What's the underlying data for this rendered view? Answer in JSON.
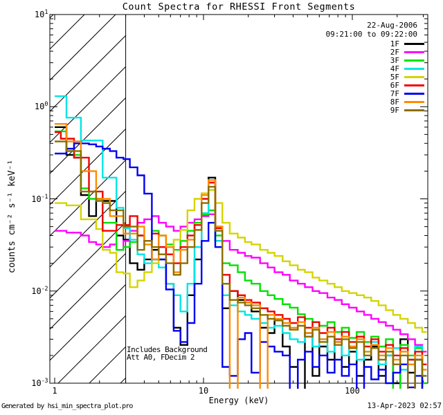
{
  "title": "Count Spectra for RHESSI Front Segments",
  "header": {
    "date": "22-Aug-2006",
    "interval": "09:21:00 to 09:22:00"
  },
  "notes": {
    "background": "Includes Background",
    "attenuation": "Att A0, FDecim 2"
  },
  "footer": {
    "generated_by": "Generated by hsi_min_spectra_plot.pro",
    "timestamp": "13-Apr-2023 02:57"
  },
  "chart_data": {
    "type": "line",
    "subtype": "step-histogram-spectra",
    "title": "Count Spectra for RHESSI Front Segments",
    "xlabel": "Energy (keV)",
    "ylabel": "counts cm⁻² s⁻¹ keV⁻¹",
    "xscale": "log",
    "yscale": "log",
    "xlim": [
      0.93,
      320
    ],
    "ylim": [
      0.001,
      10
    ],
    "grid": false,
    "legend_position": "top-right",
    "hatched_region_keV": [
      1,
      3
    ],
    "x_ticks": [
      {
        "value": 1,
        "label": "1"
      },
      {
        "value": 10,
        "label": "10"
      },
      {
        "value": 100,
        "label": "100"
      }
    ],
    "y_ticks": [
      {
        "value": 10,
        "label": "10¹",
        "exp": "1"
      },
      {
        "value": 1,
        "label": "10⁰",
        "exp": "0"
      },
      {
        "value": 0.1,
        "label": "10⁻¹",
        "exp": "-1"
      },
      {
        "value": 0.01,
        "label": "10⁻²",
        "exp": "-2"
      },
      {
        "value": 0.001,
        "label": "10⁻³",
        "exp": "-3"
      }
    ],
    "energy_bin_edges_keV": [
      1.0,
      1.1,
      1.2,
      1.35,
      1.5,
      1.7,
      1.9,
      2.1,
      2.35,
      2.6,
      2.9,
      3.2,
      3.6,
      4.0,
      4.5,
      5.0,
      5.6,
      6.3,
      7.0,
      7.8,
      8.7,
      9.7,
      10.8,
      12.0,
      13.4,
      15,
      17,
      19,
      21,
      24,
      27,
      30,
      34,
      38,
      43,
      48,
      54,
      60,
      68,
      76,
      85,
      95,
      107,
      120,
      134,
      150,
      168,
      188,
      210,
      236,
      264,
      295
    ],
    "series": [
      {
        "name": "1F",
        "color": "#000000",
        "values": [
          0.6,
          0.6,
          0.3,
          0.28,
          0.11,
          0.065,
          0.1,
          0.095,
          0.095,
          0.04,
          0.036,
          0.02,
          0.017,
          0.022,
          0.028,
          0.022,
          0.012,
          0.004,
          0.0026,
          0.009,
          0.022,
          0.065,
          0.17,
          0.035,
          0.0065,
          0.01,
          0.008,
          0.0075,
          0.006,
          0.004,
          0.0035,
          0.0048,
          0.0025,
          0.0015,
          0.0008,
          0.0035,
          0.0012,
          0.0025,
          0.0018,
          0.0028,
          0.0015,
          0.0022,
          0.0012,
          0.0018,
          0.0025,
          0.0012,
          0.002,
          0.001,
          0.003,
          0.0013,
          0.0018,
          0.0008
        ]
      },
      {
        "name": "2F",
        "color": "#ff00ff",
        "values": [
          0.045,
          0.045,
          0.043,
          0.043,
          0.04,
          0.034,
          0.032,
          0.03,
          0.032,
          0.028,
          0.035,
          0.045,
          0.055,
          0.06,
          0.065,
          0.055,
          0.05,
          0.045,
          0.05,
          0.055,
          0.06,
          0.065,
          0.068,
          0.05,
          0.035,
          0.028,
          0.026,
          0.024,
          0.023,
          0.02,
          0.018,
          0.016,
          0.015,
          0.013,
          0.012,
          0.011,
          0.01,
          0.0095,
          0.0085,
          0.008,
          0.0072,
          0.0066,
          0.006,
          0.0055,
          0.005,
          0.0046,
          0.0042,
          0.0038,
          0.0034,
          0.003,
          0.0026,
          0.0022
        ]
      },
      {
        "name": "3F",
        "color": "#00e100",
        "values": [
          0.54,
          0.54,
          0.33,
          0.3,
          0.13,
          0.1,
          0.1,
          0.055,
          0.055,
          0.028,
          0.03,
          0.034,
          0.04,
          0.035,
          0.045,
          0.04,
          0.032,
          0.028,
          0.035,
          0.045,
          0.055,
          0.068,
          0.075,
          0.04,
          0.02,
          0.019,
          0.016,
          0.013,
          0.012,
          0.01,
          0.009,
          0.0082,
          0.0072,
          0.0066,
          0.0056,
          0.005,
          0.0046,
          0.0042,
          0.0046,
          0.0036,
          0.004,
          0.0031,
          0.0036,
          0.0028,
          0.0032,
          0.0025,
          0.003,
          0.0007,
          0.0026,
          0.002,
          0.0024,
          0.001
        ]
      },
      {
        "name": "4F",
        "color": "#00e5e5",
        "values": [
          1.3,
          1.3,
          0.76,
          0.76,
          0.43,
          0.43,
          0.43,
          0.17,
          0.17,
          0.08,
          0.048,
          0.036,
          0.025,
          0.02,
          0.022,
          0.018,
          0.012,
          0.009,
          0.006,
          0.012,
          0.03,
          0.07,
          0.125,
          0.035,
          0.009,
          0.007,
          0.006,
          0.0055,
          0.005,
          0.0045,
          0.004,
          0.0042,
          0.0035,
          0.003,
          0.0028,
          0.0032,
          0.0025,
          0.003,
          0.0022,
          0.0028,
          0.002,
          0.0025,
          0.0018,
          0.0022,
          0.0028,
          0.0016,
          0.002,
          0.0024,
          0.0014,
          0.0018,
          0.0025,
          0.0012
        ]
      },
      {
        "name": "5F",
        "color": "#d4d400",
        "values": [
          0.09,
          0.09,
          0.085,
          0.085,
          0.06,
          0.06,
          0.047,
          0.028,
          0.026,
          0.016,
          0.0155,
          0.011,
          0.013,
          0.016,
          0.02,
          0.025,
          0.03,
          0.036,
          0.046,
          0.075,
          0.1,
          0.115,
          0.125,
          0.09,
          0.055,
          0.042,
          0.038,
          0.034,
          0.032,
          0.028,
          0.026,
          0.024,
          0.021,
          0.019,
          0.017,
          0.016,
          0.014,
          0.013,
          0.012,
          0.011,
          0.01,
          0.0095,
          0.009,
          0.0085,
          0.0078,
          0.007,
          0.0062,
          0.0055,
          0.005,
          0.0045,
          0.004,
          0.0036
        ]
      },
      {
        "name": "6F",
        "color": "#f10000",
        "values": [
          0.53,
          0.45,
          0.45,
          0.28,
          0.28,
          0.12,
          0.12,
          0.045,
          0.045,
          0.052,
          0.052,
          0.065,
          0.04,
          0.035,
          0.042,
          0.03,
          0.025,
          0.02,
          0.03,
          0.04,
          0.052,
          0.1,
          0.15,
          0.048,
          0.015,
          0.01,
          0.009,
          0.008,
          0.0075,
          0.0065,
          0.006,
          0.0055,
          0.005,
          0.0045,
          0.0052,
          0.004,
          0.0046,
          0.0035,
          0.004,
          0.003,
          0.0036,
          0.0028,
          0.0032,
          0.0025,
          0.003,
          0.0022,
          0.0026,
          0.002,
          0.0024,
          0.0018,
          0.0022,
          0.0016
        ]
      },
      {
        "name": "7F",
        "color": "#0000f1",
        "values": [
          0.31,
          0.31,
          0.35,
          0.4,
          0.4,
          0.39,
          0.37,
          0.35,
          0.33,
          0.28,
          0.27,
          0.22,
          0.18,
          0.114,
          0.022,
          0.022,
          0.0104,
          0.0037,
          0.0028,
          0.0045,
          0.012,
          0.035,
          0.055,
          0.03,
          0.0015,
          0.0012,
          0.003,
          0.0035,
          0.0013,
          0.0028,
          0.0025,
          0.0022,
          0.002,
          0.0008,
          0.0018,
          0.0022,
          0.0015,
          0.002,
          0.0013,
          0.0018,
          0.0012,
          0.0016,
          0.0008,
          0.0015,
          0.0011,
          0.0014,
          0.001,
          0.0013,
          0.0016,
          0.0009,
          0.0012,
          0.0008
        ]
      },
      {
        "name": "8F",
        "color": "#ff8a00",
        "values": [
          0.65,
          0.65,
          0.42,
          0.42,
          0.2,
          0.2,
          0.1,
          0.1,
          0.065,
          0.065,
          0.042,
          0.042,
          0.05,
          0.032,
          0.022,
          0.04,
          0.03,
          0.016,
          0.028,
          0.036,
          0.046,
          0.11,
          0.16,
          0.05,
          0.012,
          0.0008,
          0.0085,
          0.0075,
          0.007,
          0.0008,
          0.0055,
          0.005,
          0.0045,
          0.004,
          0.0046,
          0.0035,
          0.004,
          0.003,
          0.0036,
          0.0028,
          0.0032,
          0.0025,
          0.003,
          0.0022,
          0.0026,
          0.002,
          0.0024,
          0.0018,
          0.0022,
          0.0016,
          0.002,
          0.0014
        ]
      },
      {
        "name": "9F",
        "color": "#8c6e00",
        "values": [
          0.42,
          0.42,
          0.33,
          0.33,
          0.12,
          0.12,
          0.095,
          0.09,
          0.075,
          0.075,
          0.05,
          0.05,
          0.028,
          0.035,
          0.03,
          0.025,
          0.02,
          0.015,
          0.02,
          0.03,
          0.046,
          0.09,
          0.135,
          0.045,
          0.012,
          0.008,
          0.0075,
          0.007,
          0.0065,
          0.0055,
          0.005,
          0.0048,
          0.0042,
          0.0038,
          0.0042,
          0.0032,
          0.0038,
          0.0028,
          0.0032,
          0.0026,
          0.003,
          0.0024,
          0.0028,
          0.002,
          0.0024,
          0.0018,
          0.0022,
          0.0016,
          0.002,
          0.0007,
          0.0018,
          0.0012
        ]
      }
    ]
  }
}
